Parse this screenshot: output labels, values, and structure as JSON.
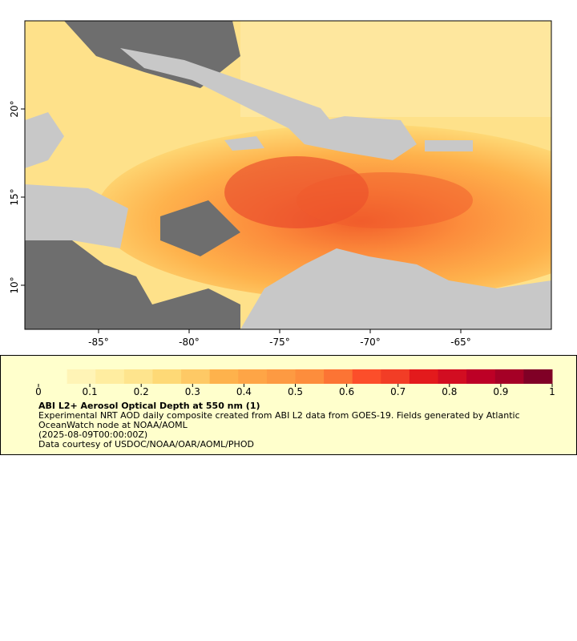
{
  "map": {
    "xlim": [
      -89.07,
      -60.0
    ],
    "ylim": [
      7.5,
      25.0
    ],
    "xticks": [
      {
        "value": -85,
        "label": "-85°"
      },
      {
        "value": -80,
        "label": "-80°"
      },
      {
        "value": -75,
        "label": "-75°"
      },
      {
        "value": -70,
        "label": "-70°"
      },
      {
        "value": -65,
        "label": "-65°"
      }
    ],
    "yticks": [
      {
        "value": 10,
        "label": "10°"
      },
      {
        "value": 15,
        "label": "15°"
      },
      {
        "value": 20,
        "label": "20°"
      }
    ],
    "colorbar": {
      "lim": [
        0,
        1
      ],
      "ticks": [
        0,
        0.1,
        0.2,
        0.3,
        0.4,
        0.5,
        0.6,
        0.7,
        0.8,
        0.9,
        1
      ],
      "colors": [
        "#ffffcc",
        "#fff4b6",
        "#ffeda0",
        "#fee48d",
        "#fed976",
        "#fec965",
        "#feb24c",
        "#fea546",
        "#fd9a42",
        "#fd8d3c",
        "#fc7434",
        "#fc4e2a",
        "#f23d26",
        "#e31a1c",
        "#d20d21",
        "#bd0026",
        "#a50026",
        "#800026"
      ]
    },
    "title": "ABI L2+ Aerosol Optical Depth at 550 nm (1)",
    "description": "Experimental NRT AOD daily composite created from ABI L2 data from GOES-19. Fields generated by Atlantic OceanWatch node at NOAA/AOML",
    "time": "(2025-08-09T00:00:00Z)",
    "credit": "Data courtesy of USDOC/NOAA/OAR/AOML/PHOD"
  }
}
